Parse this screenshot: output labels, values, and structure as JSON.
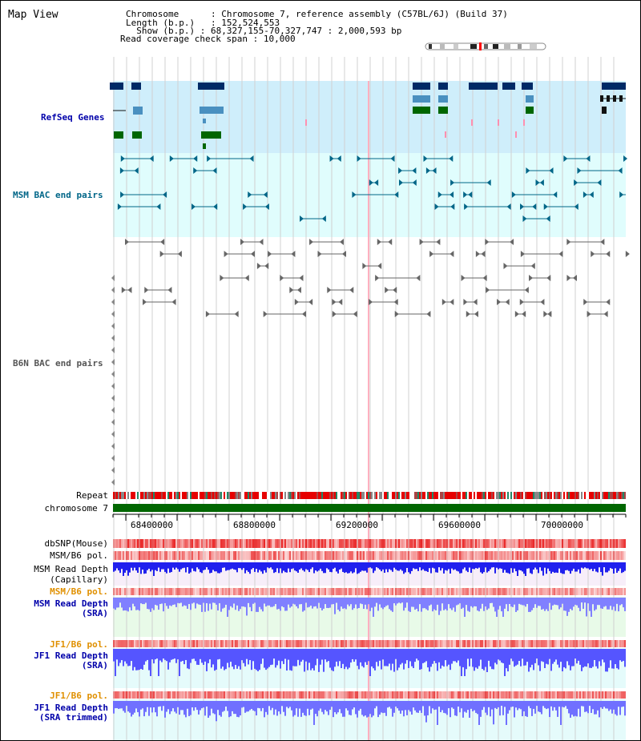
{
  "title": "Map View",
  "info": {
    "chromosome_label": "Chromosome",
    "chromosome_value": "Chromosome 7, reference assembly (C57BL/6J) (Build 37)",
    "length_label": "Length (b.p.)",
    "length_value": "152,524,553",
    "show_label": "Show (b.p.)",
    "show_value": "68,327,155-70,327,747 : 2,000,593 bp",
    "span_label": "Read coverage check span",
    "span_value": "10,000",
    "sep": " : "
  },
  "tracks": {
    "refseq": "RefSeq Genes",
    "msm_bac": "MSM BAC end pairs",
    "b6n_bac": "B6N BAC end pairs",
    "repeat": "Repeat",
    "chromosome": "chromosome 7",
    "dbsnp": "dbSNP(Mouse)",
    "msm_pol": "MSM/B6 pol.",
    "msm_depth_cap_1": "MSM Read Depth",
    "msm_depth_cap_2": "(Capillary)",
    "msm_pol_sra": "MSM/B6 pol.",
    "msm_depth_sra_1": "MSM Read Depth",
    "msm_depth_sra_2": "(SRA)",
    "jf1_pol": "JF1/B6 pol.",
    "jf1_depth_1": "JF1 Read Depth",
    "jf1_depth_2": "(SRA)",
    "jf1_pol_trim": "JF1/B6 pol.",
    "jf1_depth_trim_1": "JF1 Read Depth",
    "jf1_depth_trim_2": "(SRA trimmed)"
  },
  "axis_ticks": [
    "68400000",
    "68800000",
    "69200000",
    "69600000",
    "70000000"
  ],
  "colors": {
    "refseq_bg": "#cfeefb",
    "msm_bac_bg": "#e0fdfd",
    "repeat_red": "#e60000",
    "chromosome": "#006600",
    "depth_blue": "#3232ff",
    "pol_red": "#ff4040",
    "label_blue": "#0000aa",
    "label_orange": "#e09000"
  }
}
